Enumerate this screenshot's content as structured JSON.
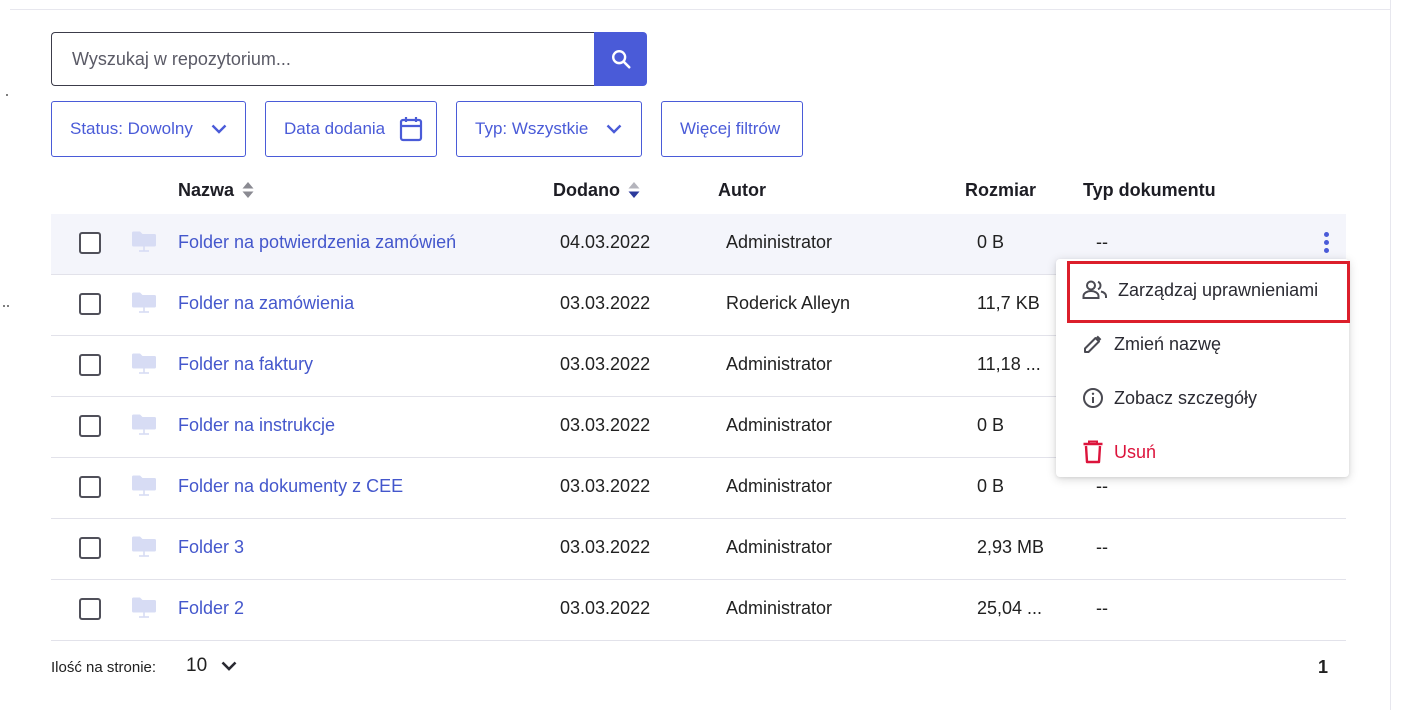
{
  "search": {
    "placeholder": "Wyszukaj w repozytorium..."
  },
  "filters": [
    {
      "label": "Status: Dowolny"
    },
    {
      "label": "Data dodania"
    },
    {
      "label": "Typ: Wszystkie"
    },
    {
      "label": "Więcej filtrów"
    }
  ],
  "table": {
    "columns": {
      "name": "Nazwa",
      "added": "Dodano",
      "author": "Autor",
      "size": "Rozmiar",
      "doctype": "Typ dokumentu"
    },
    "rows": [
      {
        "name": "Folder na potwierdzenia zamówień",
        "added": "04.03.2022",
        "author": "Administrator",
        "size": "0 B",
        "doctype": "--"
      },
      {
        "name": "Folder na zamówienia",
        "added": "03.03.2022",
        "author": "Roderick Alleyn",
        "size": "11,7 KB",
        "doctype": ""
      },
      {
        "name": "Folder na faktury",
        "added": "03.03.2022",
        "author": "Administrator",
        "size": "11,18 ...",
        "doctype": ""
      },
      {
        "name": "Folder na instrukcje",
        "added": "03.03.2022",
        "author": "Administrator",
        "size": "0 B",
        "doctype": ""
      },
      {
        "name": "Folder na dokumenty z CEE",
        "added": "03.03.2022",
        "author": "Administrator",
        "size": "0 B",
        "doctype": "--"
      },
      {
        "name": "Folder 3",
        "added": "03.03.2022",
        "author": "Administrator",
        "size": "2,93 MB",
        "doctype": "--"
      },
      {
        "name": "Folder 2",
        "added": "03.03.2022",
        "author": "Administrator",
        "size": "25,04 ...",
        "doctype": "--"
      }
    ]
  },
  "context_menu": {
    "items": [
      {
        "label": "Zarządzaj uprawnieniami",
        "icon": "people-icon"
      },
      {
        "label": "Zmień nazwę",
        "icon": "pencil-icon"
      },
      {
        "label": "Zobacz szczegóły",
        "icon": "info-icon"
      },
      {
        "label": "Usuń",
        "icon": "trash-icon"
      }
    ]
  },
  "footer": {
    "per_page_label": "Ilość na stronie:",
    "per_page_value": "10",
    "page": "1"
  },
  "colors": {
    "accent": "#4a5bd8",
    "link": "#4457cc",
    "danger": "#dc143c",
    "highlight_border": "#dc1f2b",
    "row_highlight": "#f4f5fb"
  }
}
